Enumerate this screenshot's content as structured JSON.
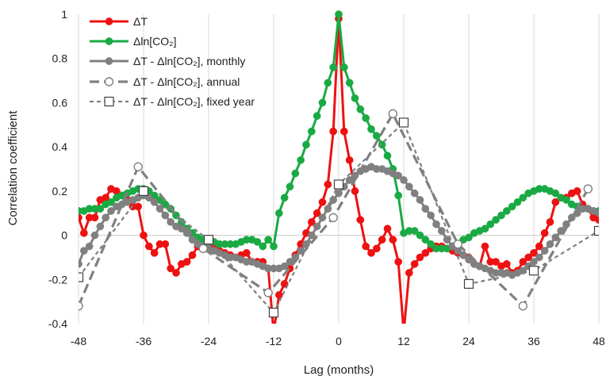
{
  "chart_data": {
    "type": "line",
    "title": "",
    "xlabel": "Lag (months)",
    "ylabel": "Correlation coefficient",
    "xlim": [
      -48,
      48
    ],
    "ylim": [
      -0.4,
      1.0
    ],
    "x_ticks": [
      -48,
      -36,
      -24,
      -12,
      0,
      12,
      24,
      36,
      48
    ],
    "y_ticks": [
      -0.4,
      -0.2,
      0,
      0.2,
      0.4,
      0.6,
      0.8,
      1
    ],
    "y_tick_labels": [
      "-0.4",
      "-0.2",
      "0",
      "0.2",
      "0.4",
      "0.6",
      "0.8",
      "1"
    ],
    "grid": "vertical lines at x ticks, horizontal line at y=0",
    "legend_position": "top-left",
    "series": [
      {
        "name": "ΔT",
        "color": "#ee1111",
        "style": "solid",
        "marker": "filled-circle",
        "x": [
          -48,
          -47,
          -46,
          -45,
          -44,
          -43,
          -42,
          -41,
          -40,
          -39,
          -38,
          -37,
          -36,
          -35,
          -34,
          -33,
          -32,
          -31,
          -30,
          -29,
          -28,
          -27,
          -26,
          -25,
          -24,
          -23,
          -22,
          -21,
          -20,
          -19,
          -18,
          -17,
          -16,
          -15,
          -14,
          -13,
          -12,
          -11,
          -10,
          -9,
          -8,
          -7,
          -6,
          -5,
          -4,
          -3,
          -2,
          -1,
          0,
          1,
          2,
          3,
          4,
          5,
          6,
          7,
          8,
          9,
          10,
          11,
          12,
          13,
          14,
          15,
          16,
          17,
          18,
          19,
          20,
          21,
          22,
          23,
          24,
          25,
          26,
          27,
          28,
          29,
          30,
          31,
          32,
          33,
          34,
          35,
          36,
          37,
          38,
          39,
          40,
          41,
          42,
          43,
          44,
          45,
          46,
          47,
          48
        ],
        "y": [
          0.08,
          0.01,
          0.08,
          0.08,
          0.16,
          0.17,
          0.21,
          0.2,
          0.18,
          0.16,
          0.13,
          0.13,
          0.0,
          -0.05,
          -0.08,
          -0.04,
          -0.04,
          -0.15,
          -0.17,
          -0.13,
          -0.12,
          -0.09,
          -0.05,
          -0.05,
          -0.03,
          -0.05,
          -0.07,
          -0.08,
          -0.09,
          -0.1,
          -0.09,
          -0.08,
          -0.12,
          -0.12,
          -0.12,
          -0.15,
          -0.44,
          -0.27,
          -0.22,
          -0.15,
          -0.09,
          -0.04,
          0.01,
          0.06,
          0.1,
          0.15,
          0.23,
          0.47,
          0.98,
          0.47,
          0.34,
          0.2,
          0.07,
          -0.05,
          -0.08,
          -0.06,
          -0.02,
          0.03,
          -0.02,
          -0.12,
          -0.44,
          -0.17,
          -0.13,
          -0.1,
          -0.08,
          -0.06,
          -0.05,
          -0.05,
          -0.06,
          -0.07,
          -0.08,
          -0.09,
          -0.1,
          -0.13,
          -0.14,
          -0.05,
          -0.12,
          -0.12,
          -0.14,
          -0.13,
          -0.17,
          -0.16,
          -0.12,
          -0.1,
          -0.08,
          -0.05,
          0.01,
          0.06,
          0.15,
          0.17,
          0.17,
          0.19,
          0.2,
          0.14,
          0.12,
          0.08,
          0.07
        ]
      },
      {
        "name": "Δln[CO₂]",
        "color": "#1aaa44",
        "style": "solid",
        "marker": "filled-circle",
        "x": [
          -48,
          -47,
          -46,
          -45,
          -44,
          -43,
          -42,
          -41,
          -40,
          -39,
          -38,
          -37,
          -36,
          -35,
          -34,
          -33,
          -32,
          -31,
          -30,
          -29,
          -28,
          -27,
          -26,
          -25,
          -24,
          -23,
          -22,
          -21,
          -20,
          -19,
          -18,
          -17,
          -16,
          -15,
          -14,
          -13,
          -12,
          -11,
          -10,
          -9,
          -8,
          -7,
          -6,
          -5,
          -4,
          -3,
          -2,
          -1,
          0,
          1,
          2,
          3,
          4,
          5,
          6,
          7,
          8,
          9,
          10,
          11,
          12,
          13,
          14,
          15,
          16,
          17,
          18,
          19,
          20,
          21,
          22,
          23,
          24,
          25,
          26,
          27,
          28,
          29,
          30,
          31,
          32,
          33,
          34,
          35,
          36,
          37,
          38,
          39,
          40,
          41,
          42,
          43,
          44,
          45,
          46,
          47,
          48
        ],
        "y": [
          0.11,
          0.11,
          0.12,
          0.12,
          0.12,
          0.14,
          0.15,
          0.17,
          0.18,
          0.19,
          0.2,
          0.21,
          0.21,
          0.2,
          0.18,
          0.16,
          0.14,
          0.12,
          0.09,
          0.06,
          0.03,
          0.01,
          -0.01,
          -0.02,
          -0.03,
          -0.03,
          -0.04,
          -0.04,
          -0.04,
          -0.04,
          -0.03,
          -0.02,
          -0.02,
          -0.03,
          -0.05,
          -0.02,
          -0.05,
          0.1,
          0.17,
          0.22,
          0.28,
          0.34,
          0.41,
          0.47,
          0.54,
          0.6,
          0.69,
          0.76,
          1.0,
          0.76,
          0.69,
          0.62,
          0.57,
          0.53,
          0.48,
          0.45,
          0.41,
          0.36,
          0.3,
          0.18,
          0.01,
          0.02,
          0.02,
          0.0,
          -0.02,
          -0.04,
          -0.06,
          -0.06,
          -0.06,
          -0.05,
          -0.04,
          -0.02,
          -0.01,
          0.01,
          0.02,
          0.03,
          0.05,
          0.07,
          0.09,
          0.11,
          0.13,
          0.15,
          0.17,
          0.19,
          0.2,
          0.21,
          0.21,
          0.2,
          0.19,
          0.17,
          0.16,
          0.14,
          0.13,
          0.12,
          0.12,
          0.11,
          0.11
        ]
      },
      {
        "name": "ΔT - Δln[CO₂], monthly",
        "color": "#808080",
        "style": "solid",
        "marker": "filled-circle",
        "x": [
          -48,
          -47,
          -46,
          -45,
          -44,
          -43,
          -42,
          -41,
          -40,
          -39,
          -38,
          -37,
          -36,
          -35,
          -34,
          -33,
          -32,
          -31,
          -30,
          -29,
          -28,
          -27,
          -26,
          -25,
          -24,
          -23,
          -22,
          -21,
          -20,
          -19,
          -18,
          -17,
          -16,
          -15,
          -14,
          -13,
          -12,
          -11,
          -10,
          -9,
          -8,
          -7,
          -6,
          -5,
          -4,
          -3,
          -2,
          -1,
          0,
          1,
          2,
          3,
          4,
          5,
          6,
          7,
          8,
          9,
          10,
          11,
          12,
          13,
          14,
          15,
          16,
          17,
          18,
          19,
          20,
          21,
          22,
          23,
          24,
          25,
          26,
          27,
          28,
          29,
          30,
          31,
          32,
          33,
          34,
          35,
          36,
          37,
          38,
          39,
          40,
          41,
          42,
          43,
          44,
          45,
          46,
          47,
          48
        ],
        "y": [
          -0.13,
          -0.07,
          -0.05,
          0.0,
          0.04,
          0.08,
          0.11,
          0.13,
          0.14,
          0.15,
          0.16,
          0.17,
          0.18,
          0.17,
          0.15,
          0.12,
          0.09,
          0.06,
          0.04,
          0.03,
          0.01,
          -0.02,
          -0.04,
          -0.05,
          -0.06,
          -0.07,
          -0.08,
          -0.09,
          -0.1,
          -0.1,
          -0.11,
          -0.12,
          -0.12,
          -0.13,
          -0.14,
          -0.15,
          -0.15,
          -0.15,
          -0.14,
          -0.12,
          -0.1,
          -0.07,
          -0.04,
          0.0,
          0.04,
          0.08,
          0.12,
          0.16,
          0.19,
          0.22,
          0.25,
          0.27,
          0.29,
          0.3,
          0.31,
          0.3,
          0.3,
          0.29,
          0.28,
          0.27,
          0.25,
          0.22,
          0.19,
          0.16,
          0.12,
          0.09,
          0.05,
          0.02,
          -0.02,
          -0.05,
          -0.07,
          -0.09,
          -0.11,
          -0.13,
          -0.14,
          -0.15,
          -0.16,
          -0.17,
          -0.17,
          -0.17,
          -0.18,
          -0.17,
          -0.16,
          -0.14,
          -0.12,
          -0.1,
          -0.07,
          -0.04,
          -0.01,
          0.02,
          0.05,
          0.08,
          0.1,
          0.12,
          0.12,
          0.11,
          0.1
        ]
      },
      {
        "name": "ΔT - Δln[CO₂], annual",
        "color": "#808080",
        "style": "dashed",
        "marker": "open-circle",
        "x": [
          -48,
          -37,
          -25,
          -13,
          -1,
          10,
          22,
          34,
          46
        ],
        "y": [
          -0.32,
          0.31,
          -0.06,
          -0.26,
          0.08,
          0.55,
          -0.04,
          -0.32,
          0.21
        ]
      },
      {
        "name": "ΔT - Δln[CO₂], fixed year",
        "color": "#808080",
        "style": "dotted",
        "marker": "open-square",
        "x": [
          -48,
          -36,
          -24,
          -12,
          0,
          12,
          24,
          36,
          48
        ],
        "y": [
          -0.19,
          0.2,
          -0.02,
          -0.35,
          0.23,
          0.51,
          -0.22,
          -0.16,
          0.02
        ]
      }
    ]
  }
}
